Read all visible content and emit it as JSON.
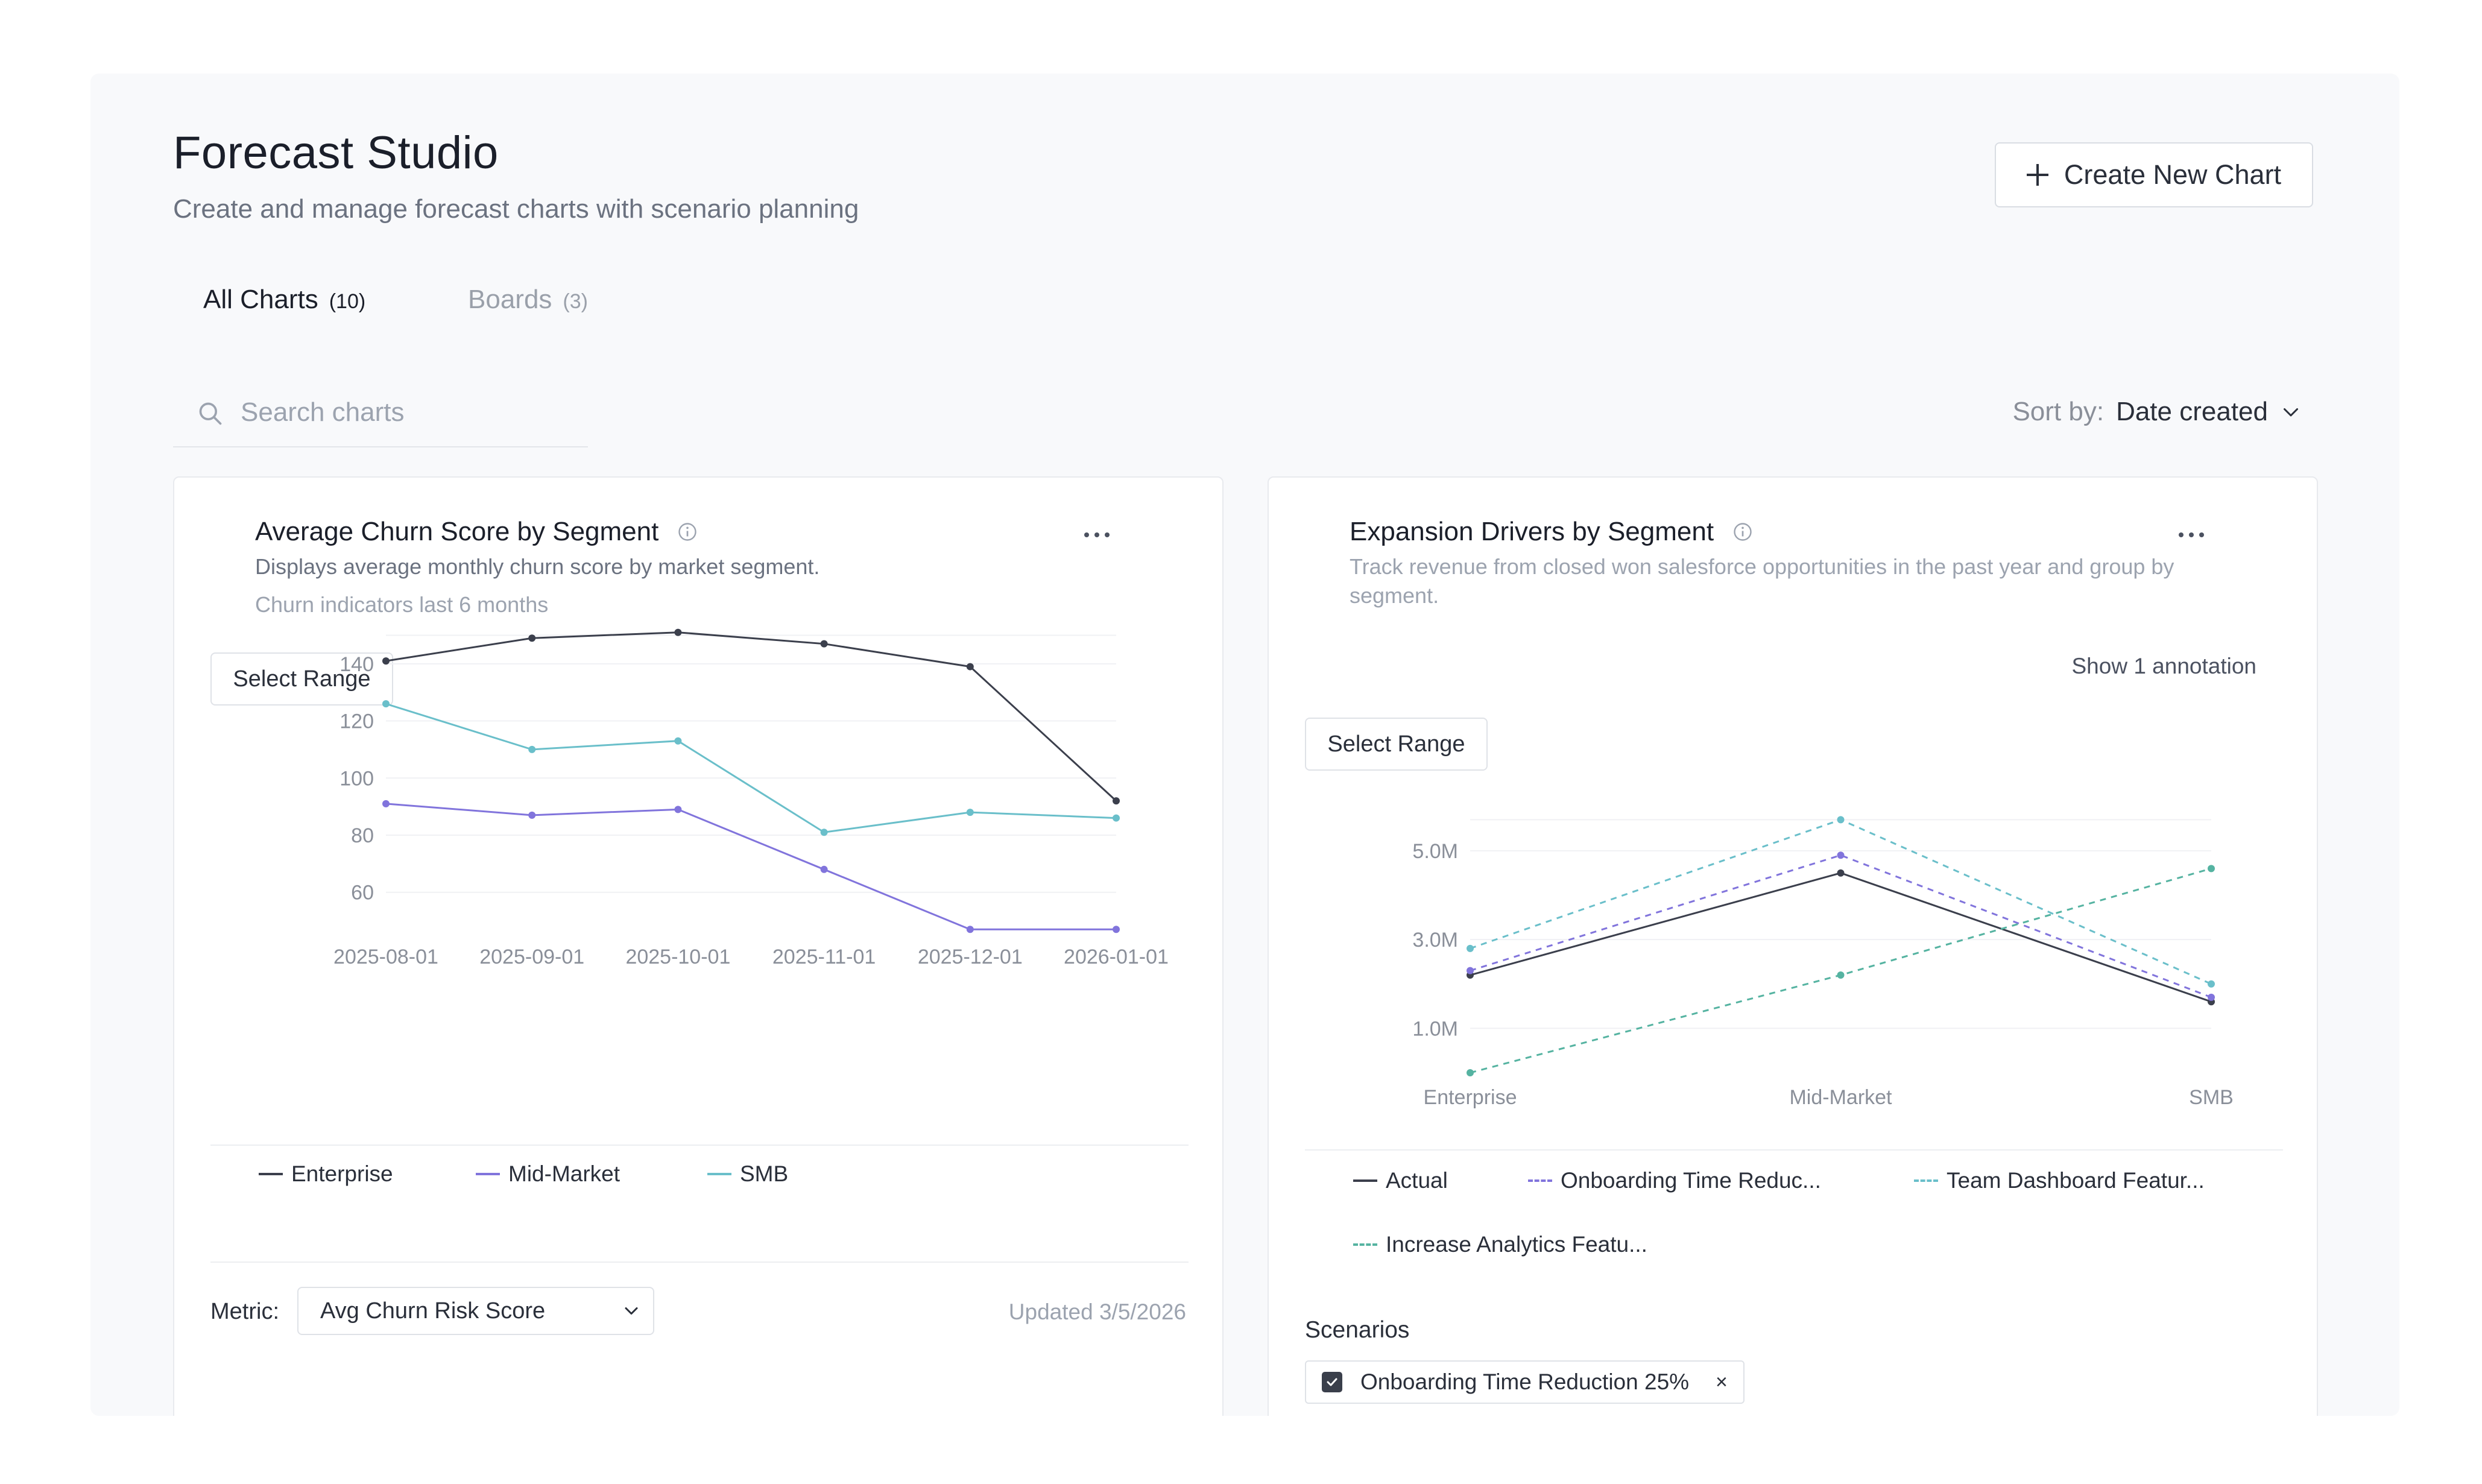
{
  "header": {
    "title": "Forecast Studio",
    "subtitle": "Create and manage forecast charts with scenario planning",
    "create_button": "Create New Chart"
  },
  "tabs": [
    {
      "label": "All Charts",
      "count": "(10)",
      "active": true
    },
    {
      "label": "Boards",
      "count": "(3)",
      "active": false
    }
  ],
  "search": {
    "placeholder": "Search charts",
    "value": ""
  },
  "sort": {
    "label": "Sort by:",
    "value": "Date created"
  },
  "icons": {
    "create": "plus-icon",
    "search": "search-icon",
    "sort": "chevron-down-icon",
    "info": "info-icon",
    "more": "more-horizontal-icon",
    "checkbox": "checkbox-checked-icon",
    "remove": "close-icon"
  },
  "colors": {
    "enterprise": "#3b3f4c",
    "mid_market": "#8174dc",
    "smb": "#6abfca",
    "scenario_teal": "#55b3a1"
  },
  "cards": [
    {
      "title": "Average Churn Score by Segment",
      "description": "Displays average monthly churn score by market segment.",
      "subtitle": "Churn indicators last 6 months",
      "range_button": "Select Range",
      "metric_label": "Metric:",
      "metric_value": "Avg Churn Risk Score",
      "updated": "Updated 3/5/2026",
      "legend": [
        "Enterprise",
        "Mid-Market",
        "SMB"
      ]
    },
    {
      "title": "Expansion Drivers by Segment",
      "description": "Track revenue from closed won salesforce opportunities in the past year and group by segment.",
      "annotation_link": "Show 1 annotation",
      "range_button": "Select Range",
      "legend": [
        "Actual",
        "Onboarding Time Reduc...",
        "Team Dashboard Featur...",
        "Increase Analytics Featu..."
      ],
      "scenarios_label": "Scenarios",
      "scenario_chip": "Onboarding Time Reduction 25%",
      "scenario_remove": "×"
    }
  ],
  "chart_data": [
    {
      "type": "line",
      "title": "",
      "x": [
        "2025-08-01",
        "2025-09-01",
        "2025-10-01",
        "2025-11-01",
        "2025-12-01",
        "2026-01-01"
      ],
      "series": [
        {
          "name": "Enterprise",
          "values": [
            141,
            149,
            151,
            147,
            139,
            92
          ]
        },
        {
          "name": "Mid-Market",
          "values": [
            91,
            87,
            89,
            68,
            47,
            47
          ]
        },
        {
          "name": "SMB",
          "values": [
            126,
            110,
            113,
            81,
            88,
            86
          ]
        }
      ],
      "yticks": [
        60,
        80,
        100,
        120,
        140
      ],
      "ylim": [
        46,
        152
      ],
      "grid": true
    },
    {
      "type": "line",
      "title": "",
      "x": [
        "Enterprise",
        "Mid-Market",
        "SMB"
      ],
      "series": [
        {
          "name": "Actual",
          "values": [
            2.2,
            4.5,
            1.6
          ],
          "dashed": false
        },
        {
          "name": "Onboarding Time Reduc...",
          "values": [
            2.3,
            4.9,
            1.7
          ],
          "dashed": true
        },
        {
          "name": "Team Dashboard Featur...",
          "values": [
            2.8,
            5.7,
            2.0
          ],
          "dashed": true
        },
        {
          "name": "Increase Analytics Featu...",
          "values": [
            0,
            2.2,
            4.6
          ],
          "dashed": true
        }
      ],
      "yticks": [
        "1.0M",
        "3.0M",
        "5.0M"
      ],
      "ytick_values": [
        1.0,
        3.0,
        5.0
      ],
      "ylim": [
        0,
        5.8
      ],
      "grid": true
    }
  ]
}
